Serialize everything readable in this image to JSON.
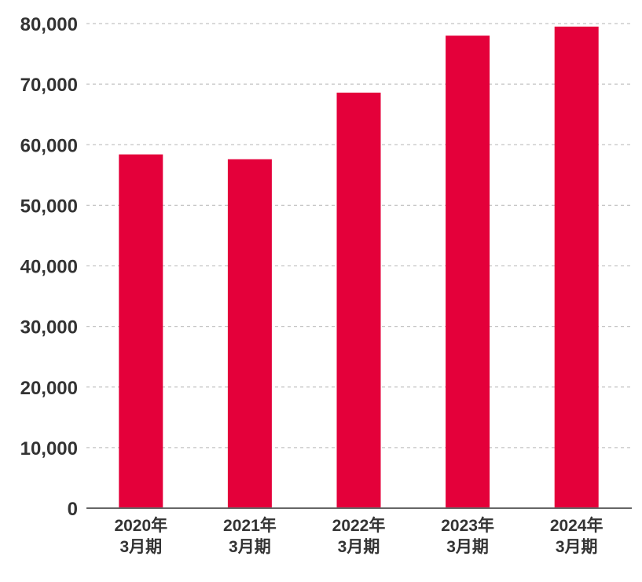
{
  "chart_data": {
    "type": "bar",
    "title": "",
    "xlabel": "",
    "ylabel": "",
    "categories": [
      [
        "2020年",
        "3月期"
      ],
      [
        "2021年",
        "3月期"
      ],
      [
        "2022年",
        "3月期"
      ],
      [
        "2023年",
        "3月期"
      ],
      [
        "2024年",
        "3月期"
      ]
    ],
    "values": [
      58400,
      57600,
      68600,
      78000,
      79500
    ],
    "ylim": [
      0,
      80000
    ],
    "yticks": [
      0,
      10000,
      20000,
      30000,
      40000,
      50000,
      60000,
      70000,
      80000
    ],
    "ytick_labels": [
      "0",
      "10,000",
      "20,000",
      "30,000",
      "40,000",
      "50,000",
      "60,000",
      "70,000",
      "80,000"
    ],
    "grid": true,
    "grid_style": "dashed",
    "bar_color": "#e4003a",
    "gridline_color": "#c4c4c4",
    "axis_color": "#666666",
    "text_color": "#333333",
    "legend": "none"
  }
}
